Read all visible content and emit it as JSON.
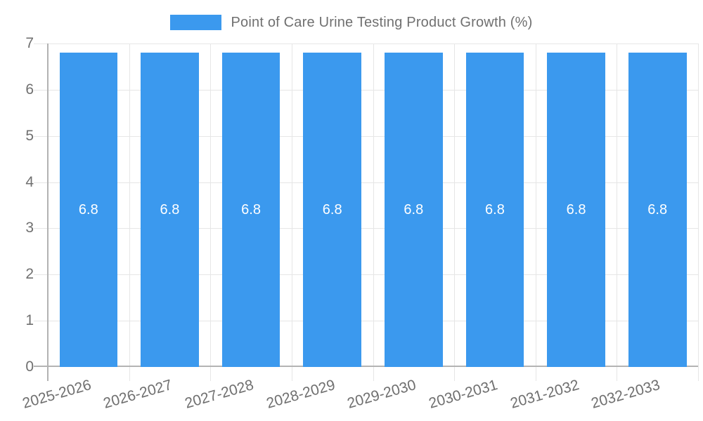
{
  "legend": {
    "label": "Point of Care Urine Testing Product Growth (%)"
  },
  "chart_data": {
    "type": "bar",
    "title": "Point of Care Urine Testing Product Growth (%)",
    "categories": [
      "2025-2026",
      "2026-2027",
      "2027-2028",
      "2028-2029",
      "2029-2030",
      "2030-2031",
      "2031-2032",
      "2032-2033"
    ],
    "series": [
      {
        "name": "Point of Care Urine Testing Product Growth (%)",
        "values": [
          6.8,
          6.8,
          6.8,
          6.8,
          6.8,
          6.8,
          6.8,
          6.8
        ]
      }
    ],
    "value_labels": [
      "6.8",
      "6.8",
      "6.8",
      "6.8",
      "6.8",
      "6.8",
      "6.8",
      "6.8"
    ],
    "xlabel": "",
    "ylabel": "",
    "ylim": [
      0,
      7
    ],
    "yticks": [
      "0",
      "1",
      "2",
      "3",
      "4",
      "5",
      "6",
      "7"
    ],
    "grid": true,
    "legend_position": "top-center",
    "colors": {
      "bar": "#3B99EE",
      "grid": "#E6E6E6",
      "axis": "#B3B3B3",
      "text": "#707070",
      "value_label": "#FFFFFF"
    }
  }
}
